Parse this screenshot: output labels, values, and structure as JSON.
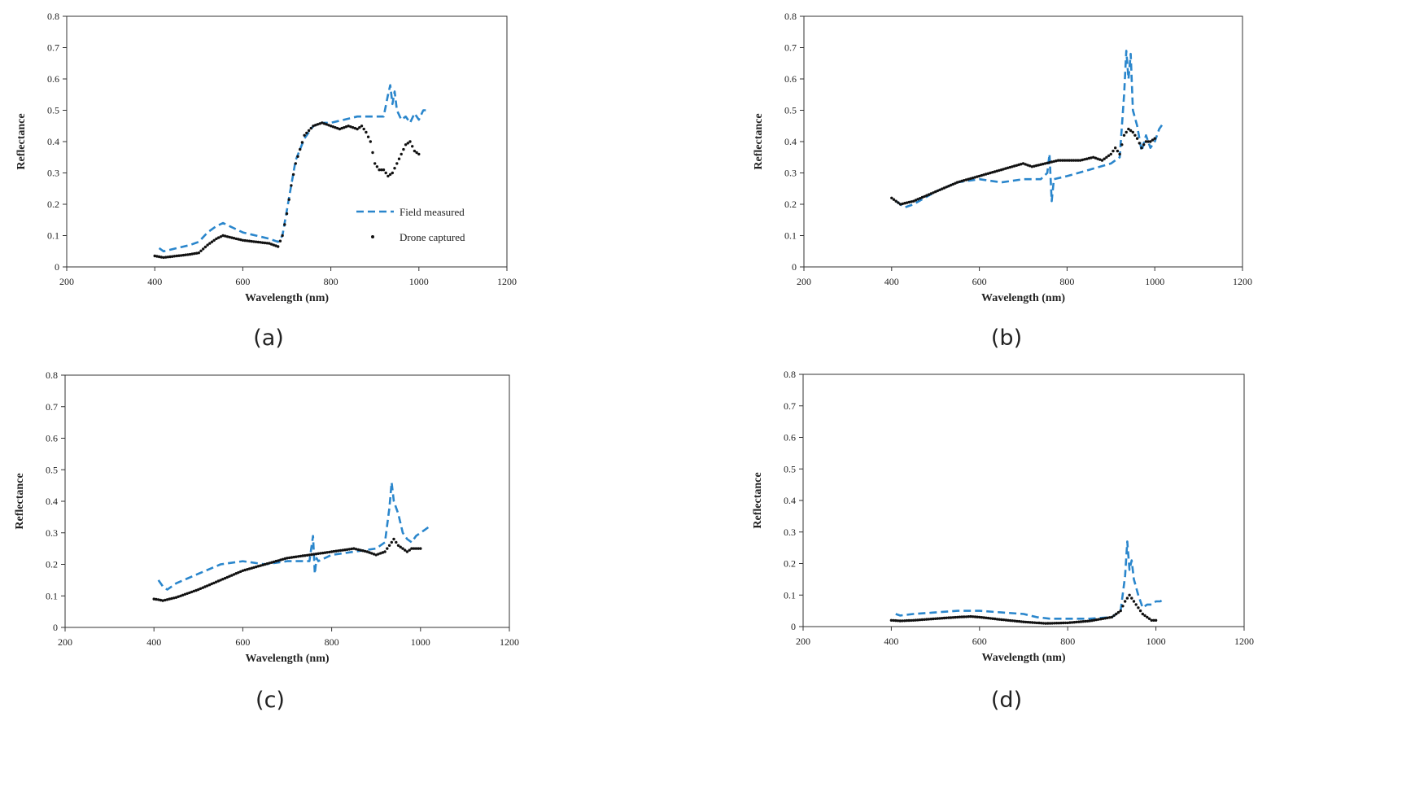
{
  "figure": {
    "captions": [
      "(a)",
      "(b)",
      "(c)",
      "(d)"
    ]
  },
  "colors": {
    "field": "#2a86cc",
    "drone": "#111111",
    "axis": "#333333",
    "text": "#222222"
  },
  "chart_data": [
    {
      "type": "line",
      "panel": "a",
      "xlabel": "Wavelength (nm)",
      "ylabel": "Reflectance",
      "xlim": [
        200,
        1200
      ],
      "ylim": [
        0,
        0.8
      ],
      "xticks": [
        200,
        400,
        600,
        800,
        1000,
        1200
      ],
      "yticks": [
        0,
        0.1,
        0.2,
        0.3,
        0.4,
        0.5,
        0.6,
        0.7,
        0.8
      ],
      "legend": {
        "placement": "lower-right",
        "entries": [
          "Field measured",
          "Drone captured"
        ]
      },
      "series": [
        {
          "name": "Field measured",
          "style": "dashed",
          "x": [
            410,
            420,
            450,
            480,
            500,
            520,
            540,
            555,
            570,
            600,
            630,
            660,
            680,
            690,
            700,
            710,
            720,
            740,
            760,
            780,
            800,
            830,
            860,
            900,
            920,
            930,
            935,
            940,
            945,
            950,
            960,
            970,
            980,
            990,
            1000,
            1010,
            1020
          ],
          "y": [
            0.06,
            0.05,
            0.06,
            0.07,
            0.08,
            0.11,
            0.13,
            0.14,
            0.13,
            0.11,
            0.1,
            0.09,
            0.08,
            0.1,
            0.18,
            0.26,
            0.34,
            0.41,
            0.45,
            0.46,
            0.46,
            0.47,
            0.48,
            0.48,
            0.48,
            0.55,
            0.58,
            0.52,
            0.56,
            0.5,
            0.47,
            0.48,
            0.46,
            0.49,
            0.47,
            0.5,
            0.5
          ]
        },
        {
          "name": "Drone captured",
          "style": "dots",
          "x": [
            400,
            420,
            450,
            480,
            500,
            520,
            540,
            555,
            570,
            600,
            630,
            660,
            680,
            690,
            700,
            710,
            720,
            740,
            760,
            780,
            800,
            820,
            840,
            860,
            870,
            880,
            890,
            900,
            910,
            920,
            930,
            940,
            950,
            960,
            970,
            980,
            990,
            1000
          ],
          "y": [
            0.035,
            0.03,
            0.035,
            0.04,
            0.045,
            0.07,
            0.09,
            0.1,
            0.095,
            0.085,
            0.08,
            0.075,
            0.065,
            0.1,
            0.17,
            0.26,
            0.33,
            0.42,
            0.45,
            0.46,
            0.45,
            0.44,
            0.45,
            0.44,
            0.45,
            0.43,
            0.4,
            0.33,
            0.31,
            0.31,
            0.29,
            0.3,
            0.33,
            0.36,
            0.39,
            0.4,
            0.37,
            0.36
          ]
        }
      ]
    },
    {
      "type": "line",
      "panel": "b",
      "xlabel": "Wavelength (nm)",
      "ylabel": "Reflectance",
      "xlim": [
        200,
        1200
      ],
      "ylim": [
        0,
        0.8
      ],
      "xticks": [
        200,
        400,
        600,
        800,
        1000,
        1200
      ],
      "yticks": [
        0,
        0.1,
        0.2,
        0.3,
        0.4,
        0.5,
        0.6,
        0.7,
        0.8
      ],
      "series": [
        {
          "name": "Field measured",
          "style": "dashed",
          "x": [
            410,
            420,
            430,
            450,
            500,
            550,
            600,
            650,
            700,
            740,
            755,
            760,
            765,
            770,
            800,
            850,
            900,
            920,
            930,
            935,
            940,
            945,
            950,
            960,
            970,
            980,
            990,
            1000,
            1010,
            1020
          ],
          "y": [
            0.21,
            0.2,
            0.19,
            0.2,
            0.24,
            0.27,
            0.28,
            0.27,
            0.28,
            0.28,
            0.3,
            0.36,
            0.21,
            0.28,
            0.29,
            0.31,
            0.33,
            0.35,
            0.55,
            0.69,
            0.6,
            0.68,
            0.5,
            0.45,
            0.37,
            0.42,
            0.38,
            0.4,
            0.44,
            0.46
          ]
        },
        {
          "name": "Drone captured",
          "style": "dots",
          "x": [
            400,
            410,
            420,
            450,
            500,
            550,
            600,
            650,
            700,
            720,
            750,
            780,
            800,
            830,
            860,
            880,
            900,
            910,
            920,
            930,
            940,
            950,
            960,
            970,
            980,
            990,
            1000
          ],
          "y": [
            0.22,
            0.21,
            0.2,
            0.21,
            0.24,
            0.27,
            0.29,
            0.31,
            0.33,
            0.32,
            0.33,
            0.34,
            0.34,
            0.34,
            0.35,
            0.34,
            0.36,
            0.38,
            0.36,
            0.42,
            0.44,
            0.43,
            0.41,
            0.38,
            0.4,
            0.4,
            0.41
          ]
        }
      ]
    },
    {
      "type": "line",
      "panel": "c",
      "xlabel": "Wavelength (nm)",
      "ylabel": "Reflectance",
      "xlim": [
        200,
        1200
      ],
      "ylim": [
        0,
        0.8
      ],
      "xticks": [
        200,
        400,
        600,
        800,
        1000,
        1200
      ],
      "yticks": [
        0,
        0.1,
        0.2,
        0.3,
        0.4,
        0.5,
        0.6,
        0.7,
        0.8
      ],
      "series": [
        {
          "name": "Field measured",
          "style": "dashed",
          "x": [
            410,
            420,
            430,
            450,
            500,
            550,
            600,
            650,
            700,
            750,
            758,
            762,
            766,
            770,
            800,
            850,
            900,
            920,
            930,
            935,
            940,
            950,
            960,
            970,
            980,
            990,
            1000,
            1010,
            1020
          ],
          "y": [
            0.15,
            0.13,
            0.12,
            0.14,
            0.17,
            0.2,
            0.21,
            0.2,
            0.21,
            0.21,
            0.29,
            0.17,
            0.22,
            0.21,
            0.23,
            0.24,
            0.25,
            0.27,
            0.38,
            0.46,
            0.4,
            0.36,
            0.3,
            0.28,
            0.27,
            0.29,
            0.3,
            0.31,
            0.32
          ]
        },
        {
          "name": "Drone captured",
          "style": "dots",
          "x": [
            400,
            410,
            420,
            450,
            500,
            550,
            600,
            650,
            700,
            750,
            800,
            850,
            880,
            900,
            920,
            930,
            940,
            950,
            960,
            970,
            980,
            990,
            1000
          ],
          "y": [
            0.09,
            0.088,
            0.085,
            0.095,
            0.12,
            0.15,
            0.18,
            0.2,
            0.22,
            0.23,
            0.24,
            0.25,
            0.24,
            0.23,
            0.24,
            0.26,
            0.28,
            0.26,
            0.25,
            0.24,
            0.25,
            0.25,
            0.25
          ]
        }
      ]
    },
    {
      "type": "line",
      "panel": "d",
      "xlabel": "Wavelength (nm)",
      "ylabel": "Reflectance",
      "xlim": [
        200,
        1200
      ],
      "ylim": [
        0,
        0.8
      ],
      "xticks": [
        200,
        400,
        600,
        800,
        1000,
        1200
      ],
      "yticks": [
        0,
        0.1,
        0.2,
        0.3,
        0.4,
        0.5,
        0.6,
        0.7,
        0.8
      ],
      "series": [
        {
          "name": "Field measured",
          "style": "dashed",
          "x": [
            410,
            420,
            450,
            500,
            550,
            600,
            650,
            700,
            730,
            760,
            800,
            850,
            900,
            920,
            930,
            935,
            940,
            945,
            950,
            960,
            970,
            980,
            990,
            1000,
            1010,
            1020
          ],
          "y": [
            0.04,
            0.035,
            0.04,
            0.045,
            0.05,
            0.05,
            0.045,
            0.04,
            0.03,
            0.025,
            0.025,
            0.025,
            0.03,
            0.05,
            0.16,
            0.27,
            0.18,
            0.21,
            0.15,
            0.1,
            0.06,
            0.07,
            0.07,
            0.08,
            0.08,
            0.09
          ]
        },
        {
          "name": "Drone captured",
          "style": "dots",
          "x": [
            400,
            420,
            450,
            500,
            550,
            580,
            600,
            650,
            700,
            750,
            800,
            850,
            900,
            920,
            930,
            940,
            950,
            960,
            970,
            980,
            990,
            1000
          ],
          "y": [
            0.02,
            0.018,
            0.02,
            0.025,
            0.03,
            0.032,
            0.03,
            0.022,
            0.015,
            0.01,
            0.012,
            0.018,
            0.03,
            0.05,
            0.08,
            0.1,
            0.08,
            0.06,
            0.04,
            0.03,
            0.02,
            0.02
          ]
        }
      ]
    }
  ]
}
